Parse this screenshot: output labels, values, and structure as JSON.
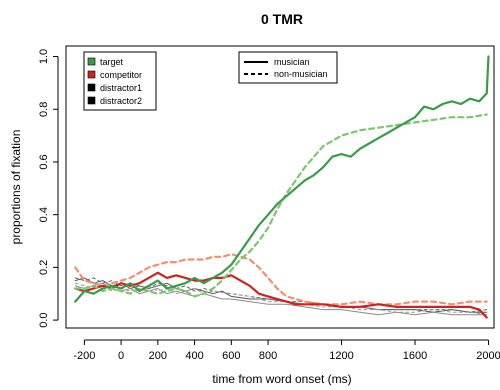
{
  "chart_data": {
    "type": "line",
    "title": "0 TMR",
    "xlabel": "time from word onset (ms)",
    "ylabel": "proportions of fixation",
    "xlim": [
      -300,
      2030
    ],
    "ylim": [
      -0.03,
      1.04
    ],
    "xticks": [
      -200,
      0,
      200,
      400,
      600,
      800,
      1200,
      1600,
      2000
    ],
    "xtick_labels": [
      "-200",
      "0",
      "200",
      "400",
      "600",
      "800",
      "1200",
      "1600",
      "2000"
    ],
    "yticks": [
      0.0,
      0.2,
      0.4,
      0.6,
      0.8,
      1.0
    ],
    "ytick_labels": [
      "0.0",
      "0.2",
      "0.4",
      "0.6",
      "0.8",
      "1.0"
    ],
    "legend_series": [
      {
        "label": "target",
        "color": "#3a9a4a"
      },
      {
        "label": "competitor",
        "color": "#cc2222"
      },
      {
        "label": "distractor1",
        "color": "#000000"
      },
      {
        "label": "distractor2",
        "color": "#000000"
      }
    ],
    "legend_group": [
      {
        "label": "musician",
        "style": "solid"
      },
      {
        "label": "non-musician",
        "style": "dashed"
      }
    ],
    "series": [
      {
        "group": "musician",
        "role": "target",
        "color": "#3a9a4a",
        "dash": false,
        "width": 2.2,
        "x": [
          -250,
          -200,
          -150,
          -100,
          -50,
          0,
          50,
          100,
          150,
          200,
          250,
          300,
          350,
          400,
          450,
          500,
          550,
          600,
          650,
          700,
          750,
          800,
          850,
          900,
          950,
          1000,
          1050,
          1100,
          1150,
          1200,
          1250,
          1300,
          1350,
          1400,
          1450,
          1500,
          1550,
          1600,
          1650,
          1700,
          1750,
          1800,
          1850,
          1900,
          1950,
          1990,
          2000
        ],
        "y": [
          0.07,
          0.11,
          0.1,
          0.12,
          0.13,
          0.12,
          0.14,
          0.11,
          0.13,
          0.15,
          0.12,
          0.13,
          0.14,
          0.16,
          0.14,
          0.16,
          0.18,
          0.21,
          0.26,
          0.31,
          0.36,
          0.4,
          0.44,
          0.47,
          0.5,
          0.53,
          0.55,
          0.58,
          0.62,
          0.63,
          0.62,
          0.65,
          0.67,
          0.69,
          0.71,
          0.73,
          0.75,
          0.77,
          0.81,
          0.8,
          0.82,
          0.83,
          0.82,
          0.84,
          0.83,
          0.86,
          1.0
        ]
      },
      {
        "group": "non-musician",
        "role": "target",
        "color": "#7fc46f",
        "dash": true,
        "width": 2.2,
        "x": [
          -250,
          -200,
          -150,
          -100,
          -50,
          0,
          50,
          100,
          150,
          200,
          250,
          300,
          350,
          400,
          450,
          500,
          550,
          600,
          650,
          700,
          750,
          800,
          850,
          900,
          950,
          1000,
          1050,
          1100,
          1150,
          1200,
          1300,
          1400,
          1500,
          1600,
          1700,
          1800,
          1900,
          1990
        ],
        "y": [
          0.12,
          0.12,
          0.13,
          0.11,
          0.12,
          0.11,
          0.1,
          0.12,
          0.11,
          0.1,
          0.11,
          0.12,
          0.11,
          0.09,
          0.1,
          0.12,
          0.15,
          0.19,
          0.23,
          0.26,
          0.3,
          0.35,
          0.42,
          0.48,
          0.53,
          0.58,
          0.62,
          0.66,
          0.68,
          0.7,
          0.72,
          0.73,
          0.74,
          0.75,
          0.76,
          0.77,
          0.77,
          0.78
        ]
      },
      {
        "group": "musician",
        "role": "competitor",
        "color": "#cc2222",
        "dash": false,
        "width": 2.2,
        "x": [
          -250,
          -200,
          -150,
          -100,
          -50,
          0,
          50,
          100,
          150,
          200,
          250,
          300,
          350,
          400,
          450,
          500,
          550,
          600,
          650,
          700,
          750,
          800,
          850,
          900,
          950,
          1000,
          1100,
          1200,
          1300,
          1400,
          1500,
          1600,
          1700,
          1800,
          1900,
          1950,
          1990
        ],
        "y": [
          0.12,
          0.11,
          0.12,
          0.13,
          0.12,
          0.14,
          0.13,
          0.14,
          0.16,
          0.18,
          0.16,
          0.17,
          0.16,
          0.15,
          0.15,
          0.16,
          0.16,
          0.17,
          0.15,
          0.13,
          0.1,
          0.09,
          0.08,
          0.07,
          0.06,
          0.06,
          0.06,
          0.05,
          0.05,
          0.06,
          0.05,
          0.05,
          0.05,
          0.05,
          0.05,
          0.04,
          0.01
        ]
      },
      {
        "group": "non-musician",
        "role": "competitor",
        "color": "#f09070",
        "dash": true,
        "width": 2.2,
        "x": [
          -250,
          -200,
          -150,
          -100,
          -50,
          0,
          50,
          100,
          150,
          200,
          250,
          300,
          350,
          400,
          450,
          500,
          550,
          600,
          650,
          700,
          750,
          800,
          850,
          900,
          1000,
          1100,
          1200,
          1300,
          1400,
          1500,
          1600,
          1700,
          1800,
          1900,
          1990
        ],
        "y": [
          0.2,
          0.15,
          0.14,
          0.13,
          0.14,
          0.15,
          0.16,
          0.18,
          0.2,
          0.21,
          0.22,
          0.22,
          0.23,
          0.23,
          0.23,
          0.24,
          0.24,
          0.25,
          0.24,
          0.23,
          0.2,
          0.16,
          0.12,
          0.09,
          0.07,
          0.06,
          0.06,
          0.07,
          0.06,
          0.06,
          0.07,
          0.07,
          0.06,
          0.07,
          0.07
        ]
      },
      {
        "group": "musician",
        "role": "distractor1",
        "color": "#555555",
        "dash": false,
        "width": 1,
        "x": [
          -250,
          -200,
          -150,
          -100,
          -50,
          0,
          50,
          100,
          150,
          200,
          250,
          300,
          350,
          400,
          450,
          500,
          550,
          600,
          700,
          800,
          900,
          1000,
          1100,
          1200,
          1300,
          1400,
          1500,
          1600,
          1700,
          1800,
          1900,
          1990
        ],
        "y": [
          0.15,
          0.16,
          0.14,
          0.15,
          0.13,
          0.14,
          0.12,
          0.13,
          0.12,
          0.13,
          0.14,
          0.12,
          0.11,
          0.12,
          0.11,
          0.1,
          0.11,
          0.09,
          0.08,
          0.08,
          0.07,
          0.06,
          0.06,
          0.05,
          0.05,
          0.04,
          0.04,
          0.04,
          0.03,
          0.04,
          0.03,
          0.03
        ]
      },
      {
        "group": "musician",
        "role": "distractor2",
        "color": "#8a8a8a",
        "dash": false,
        "width": 1,
        "x": [
          -250,
          -200,
          -150,
          -100,
          -50,
          0,
          50,
          100,
          150,
          200,
          250,
          300,
          350,
          400,
          450,
          500,
          550,
          600,
          700,
          800,
          900,
          1000,
          1100,
          1200,
          1300,
          1400,
          1500,
          1600,
          1700,
          1800,
          1900,
          1990
        ],
        "y": [
          0.13,
          0.12,
          0.13,
          0.14,
          0.12,
          0.11,
          0.12,
          0.1,
          0.11,
          0.12,
          0.1,
          0.11,
          0.1,
          0.09,
          0.1,
          0.09,
          0.08,
          0.08,
          0.07,
          0.06,
          0.06,
          0.05,
          0.04,
          0.04,
          0.03,
          0.02,
          0.03,
          0.02,
          0.03,
          0.02,
          0.02,
          0.02
        ]
      },
      {
        "group": "non-musician",
        "role": "distractor1",
        "color": "#666666",
        "dash": true,
        "width": 1,
        "x": [
          -250,
          -200,
          -150,
          -100,
          -50,
          0,
          50,
          100,
          150,
          200,
          250,
          300,
          350,
          400,
          450,
          500,
          600,
          700,
          800,
          900,
          1000,
          1100,
          1200,
          1300,
          1400,
          1500,
          1600,
          1700,
          1800,
          1900,
          1990
        ],
        "y": [
          0.16,
          0.15,
          0.16,
          0.14,
          0.15,
          0.13,
          0.14,
          0.13,
          0.12,
          0.14,
          0.13,
          0.12,
          0.13,
          0.11,
          0.12,
          0.11,
          0.1,
          0.09,
          0.08,
          0.07,
          0.07,
          0.06,
          0.05,
          0.05,
          0.04,
          0.04,
          0.04,
          0.04,
          0.04,
          0.03,
          0.04
        ]
      },
      {
        "group": "non-musician",
        "role": "distractor2",
        "color": "#9a9a9a",
        "dash": true,
        "width": 1,
        "x": [
          -250,
          -200,
          -150,
          -100,
          -50,
          0,
          50,
          100,
          150,
          200,
          250,
          300,
          350,
          400,
          450,
          500,
          600,
          700,
          800,
          900,
          1000,
          1100,
          1200,
          1300,
          1400,
          1500,
          1600,
          1700,
          1800,
          1900,
          1990
        ],
        "y": [
          0.14,
          0.13,
          0.12,
          0.13,
          0.11,
          0.12,
          0.11,
          0.12,
          0.13,
          0.11,
          0.12,
          0.1,
          0.11,
          0.12,
          0.1,
          0.11,
          0.1,
          0.09,
          0.07,
          0.07,
          0.06,
          0.05,
          0.05,
          0.04,
          0.04,
          0.03,
          0.03,
          0.04,
          0.03,
          0.03,
          0.02
        ]
      }
    ]
  }
}
